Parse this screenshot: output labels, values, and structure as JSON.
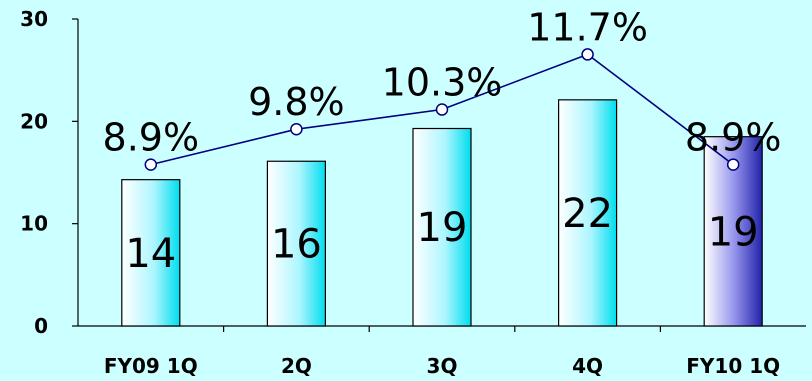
{
  "chart_data": {
    "type": "bar",
    "title": "",
    "xlabel": "",
    "ylabel": "",
    "categories": [
      "FY09 1Q",
      "2Q",
      "3Q",
      "4Q",
      "FY10 1Q"
    ],
    "ylim": [
      0,
      30
    ],
    "yticks": [
      "0",
      "10",
      "20",
      "30"
    ],
    "grid": false,
    "legend": "none",
    "series": [
      {
        "type": "bar",
        "values": [
          14.3,
          16.1,
          19.3,
          22.1,
          18.5
        ],
        "labels": [
          "14",
          "16",
          "19",
          "22",
          "19"
        ],
        "colors": [
          "#00e5ff",
          "#00e5ff",
          "#00e5ff",
          "#00e5ff",
          "#3333cc"
        ]
      },
      {
        "type": "line",
        "values": [
          8.9,
          9.8,
          10.3,
          11.7,
          8.9
        ],
        "labels": [
          "8.9%",
          "9.8%",
          "10.3%",
          "11.7%",
          "8.9%"
        ],
        "color": "#000080"
      }
    ]
  }
}
